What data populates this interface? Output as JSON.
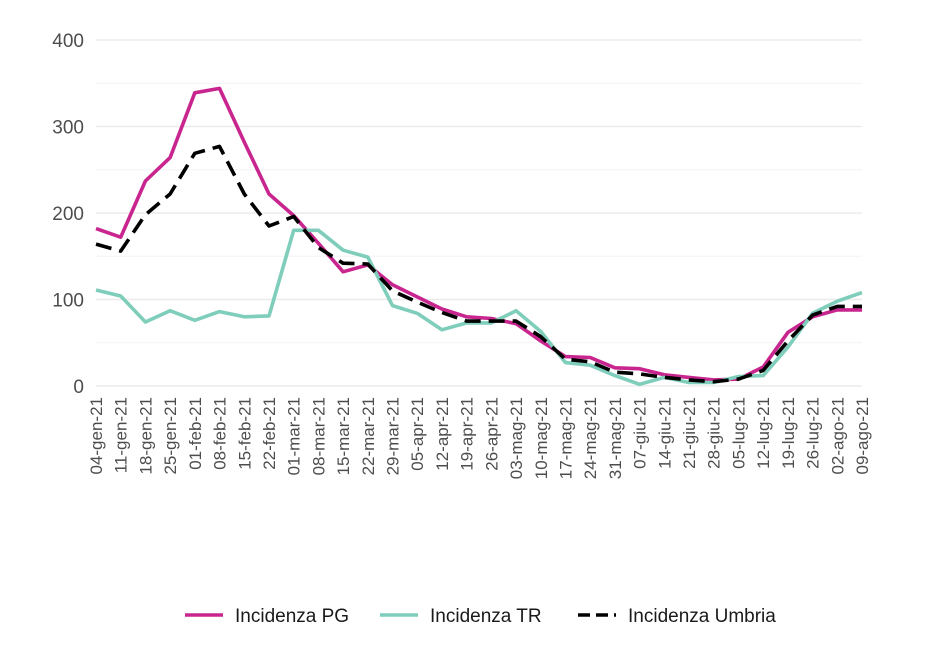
{
  "chart_data": {
    "type": "line",
    "title": "",
    "xlabel": "",
    "ylabel": "",
    "ylim": [
      0,
      400
    ],
    "y_ticks": [
      "0",
      "100",
      "200",
      "300",
      "400"
    ],
    "grid": true,
    "legend_position": "bottom",
    "categories": [
      "04-gen-21",
      "11-gen-21",
      "18-gen-21",
      "25-gen-21",
      "01-feb-21",
      "08-feb-21",
      "15-feb-21",
      "22-feb-21",
      "01-mar-21",
      "08-mar-21",
      "15-mar-21",
      "22-mar-21",
      "29-mar-21",
      "05-apr-21",
      "12-apr-21",
      "19-apr-21",
      "26-apr-21",
      "03-mag-21",
      "10-mag-21",
      "17-mag-21",
      "24-mag-21",
      "31-mag-21",
      "07-giu-21",
      "14-giu-21",
      "21-giu-21",
      "28-giu-21",
      "05-lug-21",
      "12-lug-21",
      "19-lug-21",
      "26-lug-21",
      "02-ago-21",
      "09-ago-21"
    ],
    "series": [
      {
        "name": "Incidenza PG",
        "color": "#c9258f",
        "dash": "solid",
        "values": [
          182,
          172,
          237,
          264,
          339,
          344,
          282,
          222,
          197,
          165,
          132,
          140,
          117,
          103,
          89,
          80,
          78,
          72,
          52,
          34,
          33,
          21,
          20,
          13,
          10,
          7,
          8,
          22,
          62,
          80,
          88,
          88
        ]
      },
      {
        "name": "Incidenza TR",
        "color": "#7fcdbb",
        "dash": "solid",
        "values": [
          111,
          104,
          74,
          87,
          76,
          86,
          80,
          81,
          180,
          180,
          157,
          149,
          93,
          84,
          65,
          73,
          73,
          87,
          63,
          27,
          24,
          12,
          2,
          10,
          4,
          4,
          11,
          12,
          45,
          84,
          98,
          108
        ]
      },
      {
        "name": "Incidenza Umbria",
        "color": "#000000",
        "dash": "dashed",
        "values": [
          164,
          156,
          198,
          222,
          269,
          277,
          222,
          185,
          196,
          160,
          142,
          141,
          110,
          97,
          85,
          75,
          75,
          75,
          57,
          31,
          28,
          16,
          14,
          10,
          7,
          5,
          8,
          18,
          52,
          82,
          92,
          92
        ]
      }
    ]
  }
}
